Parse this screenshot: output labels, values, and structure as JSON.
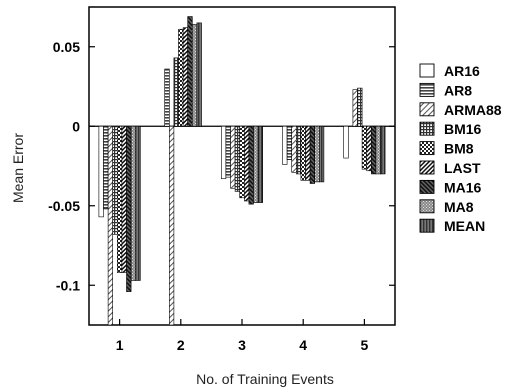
{
  "chart_data": {
    "type": "bar",
    "title": "",
    "xlabel": "No. of Training Events",
    "ylabel": "Mean Error",
    "categories": [
      "1",
      "2",
      "3",
      "4",
      "5"
    ],
    "ylim": [
      -0.125,
      0.075
    ],
    "yticks": [
      {
        "value": 0.05,
        "label": "0.05"
      },
      {
        "value": 0,
        "label": "0"
      },
      {
        "value": -0.05,
        "label": "-0.05"
      },
      {
        "value": -0.1,
        "label": "-0.1"
      }
    ],
    "grid": false,
    "legend_position": "right",
    "series": [
      {
        "name": "AR16",
        "pattern": "white",
        "values": [
          -0.057,
          0.0,
          -0.033,
          -0.024,
          -0.02
        ]
      },
      {
        "name": "AR8",
        "pattern": "hlines",
        "values": [
          -0.052,
          0.036,
          -0.032,
          -0.021,
          0.0
        ]
      },
      {
        "name": "ARMA88",
        "pattern": "diag-light",
        "values": [
          -0.125,
          -0.125,
          -0.039,
          -0.029,
          0.023
        ]
      },
      {
        "name": "BM16",
        "pattern": "grid",
        "values": [
          -0.068,
          0.043,
          -0.041,
          -0.03,
          0.024
        ]
      },
      {
        "name": "BM8",
        "pattern": "checker",
        "values": [
          -0.092,
          0.061,
          -0.045,
          -0.034,
          -0.027
        ]
      },
      {
        "name": "LAST",
        "pattern": "diag-dense",
        "values": [
          -0.092,
          0.062,
          -0.047,
          -0.034,
          -0.028
        ]
      },
      {
        "name": "MA16",
        "pattern": "diag-dark",
        "values": [
          -0.104,
          0.069,
          -0.049,
          -0.036,
          -0.03
        ]
      },
      {
        "name": "MA8",
        "pattern": "stipple",
        "values": [
          -0.097,
          0.064,
          -0.048,
          -0.035,
          -0.03
        ]
      },
      {
        "name": "MEAN",
        "pattern": "dark-vlines",
        "values": [
          -0.097,
          0.065,
          -0.048,
          -0.035,
          -0.03
        ]
      }
    ]
  }
}
